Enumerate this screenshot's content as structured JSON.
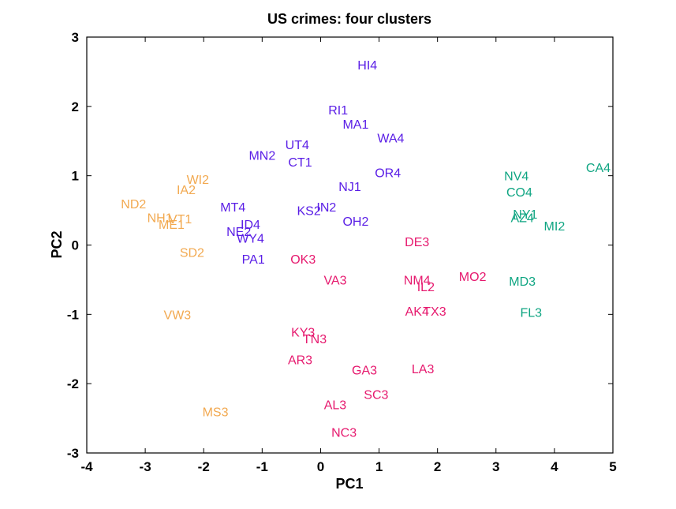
{
  "chart_data": {
    "type": "scatter",
    "title": "US crimes: four clusters",
    "xlabel": "PC1",
    "ylabel": "PC2",
    "xlim": [
      -4,
      5
    ],
    "ylim": [
      -3,
      3
    ],
    "xticks": [
      -4,
      -3,
      -2,
      -1,
      0,
      1,
      2,
      3,
      4,
      5
    ],
    "yticks": [
      -3,
      -2,
      -1,
      0,
      1,
      2,
      3
    ],
    "grid": false,
    "colors": {
      "cluster1": "#f2a950",
      "cluster2": "#5a1ee6",
      "cluster3": "#e6196e",
      "cluster4": "#0fa582"
    },
    "points": [
      {
        "label": "HI4",
        "x": 0.8,
        "y": 2.6,
        "cluster": "cluster2"
      },
      {
        "label": "RI1",
        "x": 0.3,
        "y": 1.95,
        "cluster": "cluster2"
      },
      {
        "label": "MA1",
        "x": 0.6,
        "y": 1.75,
        "cluster": "cluster2"
      },
      {
        "label": "WA4",
        "x": 1.2,
        "y": 1.55,
        "cluster": "cluster2"
      },
      {
        "label": "UT4",
        "x": -0.4,
        "y": 1.45,
        "cluster": "cluster2"
      },
      {
        "label": "MN2",
        "x": -1.0,
        "y": 1.3,
        "cluster": "cluster2"
      },
      {
        "label": "CT1",
        "x": -0.35,
        "y": 1.2,
        "cluster": "cluster2"
      },
      {
        "label": "OR4",
        "x": 1.15,
        "y": 1.05,
        "cluster": "cluster2"
      },
      {
        "label": "NJ1",
        "x": 0.5,
        "y": 0.85,
        "cluster": "cluster2"
      },
      {
        "label": "MT4",
        "x": -1.5,
        "y": 0.55,
        "cluster": "cluster2"
      },
      {
        "label": "IN2",
        "x": 0.1,
        "y": 0.55,
        "cluster": "cluster2"
      },
      {
        "label": "KS2",
        "x": -0.2,
        "y": 0.5,
        "cluster": "cluster2"
      },
      {
        "label": "OH2",
        "x": 0.6,
        "y": 0.35,
        "cluster": "cluster2"
      },
      {
        "label": "ID4",
        "x": -1.2,
        "y": 0.3,
        "cluster": "cluster2"
      },
      {
        "label": "NE2",
        "x": -1.4,
        "y": 0.2,
        "cluster": "cluster2"
      },
      {
        "label": "WY4",
        "x": -1.2,
        "y": 0.1,
        "cluster": "cluster2"
      },
      {
        "label": "PA1",
        "x": -1.15,
        "y": -0.2,
        "cluster": "cluster2"
      },
      {
        "label": "WI2",
        "x": -2.1,
        "y": 0.95,
        "cluster": "cluster1"
      },
      {
        "label": "IA2",
        "x": -2.3,
        "y": 0.8,
        "cluster": "cluster1"
      },
      {
        "label": "ND2",
        "x": -3.2,
        "y": 0.6,
        "cluster": "cluster1"
      },
      {
        "label": "NH1",
        "x": -2.75,
        "y": 0.4,
        "cluster": "cluster1"
      },
      {
        "label": "VT1",
        "x": -2.4,
        "y": 0.38,
        "cluster": "cluster1"
      },
      {
        "label": "ME1",
        "x": -2.55,
        "y": 0.3,
        "cluster": "cluster1"
      },
      {
        "label": "SD2",
        "x": -2.2,
        "y": -0.1,
        "cluster": "cluster1"
      },
      {
        "label": "VW3",
        "x": -2.45,
        "y": -1.0,
        "cluster": "cluster1"
      },
      {
        "label": "MS3",
        "x": -1.8,
        "y": -2.4,
        "cluster": "cluster1"
      },
      {
        "label": "DE3",
        "x": 1.65,
        "y": 0.05,
        "cluster": "cluster3"
      },
      {
        "label": "OK3",
        "x": -0.3,
        "y": -0.2,
        "cluster": "cluster3"
      },
      {
        "label": "MO2",
        "x": 2.6,
        "y": -0.45,
        "cluster": "cluster3"
      },
      {
        "label": "VA3",
        "x": 0.25,
        "y": -0.5,
        "cluster": "cluster3"
      },
      {
        "label": "NM4",
        "x": 1.65,
        "y": -0.5,
        "cluster": "cluster3"
      },
      {
        "label": "IL2",
        "x": 1.8,
        "y": -0.6,
        "cluster": "cluster3"
      },
      {
        "label": "AK4",
        "x": 1.65,
        "y": -0.95,
        "cluster": "cluster3"
      },
      {
        "label": "TX3",
        "x": 1.95,
        "y": -0.95,
        "cluster": "cluster3"
      },
      {
        "label": "KY3",
        "x": -0.3,
        "y": -1.25,
        "cluster": "cluster3"
      },
      {
        "label": "TN3",
        "x": -0.1,
        "y": -1.35,
        "cluster": "cluster3"
      },
      {
        "label": "AR3",
        "x": -0.35,
        "y": -1.65,
        "cluster": "cluster3"
      },
      {
        "label": "GA3",
        "x": 0.75,
        "y": -1.8,
        "cluster": "cluster3"
      },
      {
        "label": "LA3",
        "x": 1.75,
        "y": -1.78,
        "cluster": "cluster3"
      },
      {
        "label": "SC3",
        "x": 0.95,
        "y": -2.15,
        "cluster": "cluster3"
      },
      {
        "label": "AL3",
        "x": 0.25,
        "y": -2.3,
        "cluster": "cluster3"
      },
      {
        "label": "NC3",
        "x": 0.4,
        "y": -2.7,
        "cluster": "cluster3"
      },
      {
        "label": "CA4",
        "x": 4.75,
        "y": 1.12,
        "cluster": "cluster4"
      },
      {
        "label": "NV4",
        "x": 3.35,
        "y": 1.0,
        "cluster": "cluster4"
      },
      {
        "label": "CO4",
        "x": 3.4,
        "y": 0.77,
        "cluster": "cluster4"
      },
      {
        "label": "NY1",
        "x": 3.5,
        "y": 0.45,
        "cluster": "cluster4"
      },
      {
        "label": "AZ4",
        "x": 3.45,
        "y": 0.4,
        "cluster": "cluster4"
      },
      {
        "label": "MI2",
        "x": 4.0,
        "y": 0.28,
        "cluster": "cluster4"
      },
      {
        "label": "MD3",
        "x": 3.45,
        "y": -0.52,
        "cluster": "cluster4"
      },
      {
        "label": "FL3",
        "x": 3.6,
        "y": -0.97,
        "cluster": "cluster4"
      }
    ]
  }
}
